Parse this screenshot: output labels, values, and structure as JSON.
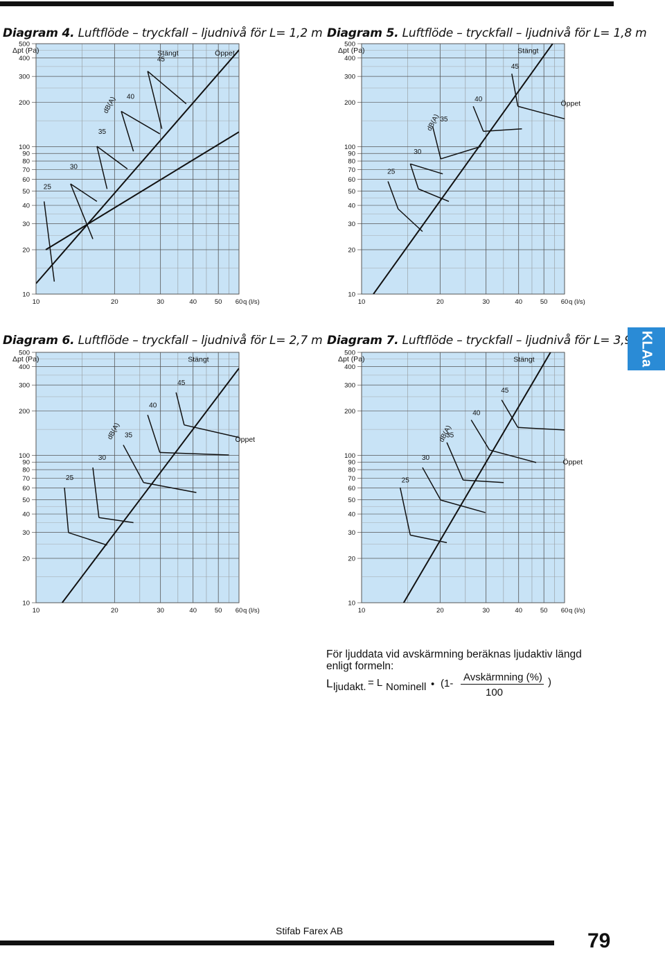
{
  "page": {
    "tab_label": "KLAa",
    "company": "Stifab Farex AB",
    "page_number": "79"
  },
  "diagrams": [
    {
      "label": "Diagram 4.",
      "title": "Luftflöde – tryckfall – ljudnivå för L= 1,2 m"
    },
    {
      "label": "Diagram 5.",
      "title": "Luftflöde – tryckfall – ljudnivå för L= 1,8 m"
    },
    {
      "label": "Diagram 6.",
      "title": "Luftflöde – tryckfall – ljudnivå för L= 2,7 m"
    },
    {
      "label": "Diagram 7.",
      "title": "Luftflöde – tryckfall – ljudnivå för L= 3,9 m"
    }
  ],
  "chart_data": [
    {
      "type": "line",
      "title": "Luftflöde – tryckfall – ljudnivå för L= 1,2 m",
      "ylabel": "Δpt (Pa)",
      "xlabel": "q (l/s)",
      "xscale": "log",
      "yscale": "log",
      "xlim": [
        10,
        60
      ],
      "ylim": [
        10,
        500
      ],
      "x_ticks": [
        10,
        20,
        30,
        40,
        50,
        60
      ],
      "y_ticks": [
        10,
        20,
        30,
        40,
        50,
        60,
        70,
        80,
        90,
        100,
        200,
        300,
        400,
        500
      ],
      "grid": true,
      "state_labels": {
        "closed": "Stängt",
        "open": "Öppet"
      },
      "sound_unit_label": "dB(A)",
      "sound_levels": [
        "25",
        "30",
        "35",
        "40",
        "45"
      ],
      "series": [
        {
          "name": "Öppet",
          "x": [
            10,
            63
          ],
          "y": [
            11.8,
            500
          ]
        },
        {
          "name": "Stängt",
          "x": [
            10.9,
            60
          ],
          "y": [
            20,
            126
          ]
        }
      ]
    },
    {
      "type": "line",
      "title": "Luftflöde – tryckfall – ljudnivå för L= 1,8 m",
      "ylabel": "Δpt (Pa)",
      "xlabel": "q (l/s)",
      "xscale": "log",
      "yscale": "log",
      "xlim": [
        10,
        60
      ],
      "ylim": [
        10,
        500
      ],
      "x_ticks": [
        10,
        20,
        30,
        40,
        50,
        60
      ],
      "y_ticks": [
        10,
        20,
        30,
        40,
        50,
        60,
        70,
        80,
        90,
        100,
        200,
        300,
        400,
        500
      ],
      "grid": true,
      "state_labels": {
        "closed": "Stängt",
        "open": "Öppet"
      },
      "sound_unit_label": "dB(A)",
      "sound_levels": [
        "25",
        "30",
        "35",
        "40",
        "45"
      ],
      "series": [
        {
          "name": "Stängt",
          "x": [
            11.1,
            54
          ],
          "y": [
            10,
            500
          ]
        }
      ]
    },
    {
      "type": "line",
      "title": "Luftflöde – tryckfall – ljudnivå för L= 2,7 m",
      "ylabel": "Δpt (Pa)",
      "xlabel": "q (l/s)",
      "xscale": "log",
      "yscale": "log",
      "xlim": [
        10,
        60
      ],
      "ylim": [
        10,
        500
      ],
      "x_ticks": [
        10,
        20,
        30,
        40,
        50,
        60
      ],
      "y_ticks": [
        10,
        20,
        30,
        40,
        50,
        60,
        70,
        80,
        90,
        100,
        200,
        300,
        400,
        500
      ],
      "grid": true,
      "state_labels": {
        "closed": "Stängt",
        "open": "Öppet"
      },
      "sound_unit_label": "dB(A)",
      "sound_levels": [
        "25",
        "30",
        "35",
        "40",
        "45"
      ],
      "series": [
        {
          "name": "Stängt",
          "x": [
            12.6,
            60
          ],
          "y": [
            10,
            390
          ]
        }
      ]
    },
    {
      "type": "line",
      "title": "Luftflöde – tryckfall – ljudnivå för L= 3,9 m",
      "ylabel": "Δpt (Pa)",
      "xlabel": "q (l/s)",
      "xscale": "log",
      "yscale": "log",
      "xlim": [
        10,
        60
      ],
      "ylim": [
        10,
        500
      ],
      "x_ticks": [
        10,
        20,
        30,
        40,
        50,
        60
      ],
      "y_ticks": [
        10,
        20,
        30,
        40,
        50,
        60,
        70,
        80,
        90,
        100,
        200,
        300,
        400,
        500
      ],
      "grid": true,
      "state_labels": {
        "closed": "Stängt",
        "open": "Öppet"
      },
      "sound_unit_label": "dB(A)",
      "sound_levels": [
        "25",
        "30",
        "35",
        "40",
        "45"
      ],
      "series": [
        {
          "name": "Stängt",
          "x": [
            14.5,
            53
          ],
          "y": [
            10,
            500
          ]
        }
      ]
    }
  ],
  "note": {
    "text": "För ljuddata vid avskärmning beräknas ljudaktiv längd enligt formeln:",
    "formula_lhs": "L",
    "formula_lhs_sub": "ljudakt.",
    "formula_eq": "= L",
    "formula_rhs_sub": "Nominell",
    "formula_dot": "•",
    "formula_open": "(1-",
    "formula_numerator": "Avskärmning (%)",
    "formula_close": ")",
    "formula_denominator": "100"
  }
}
